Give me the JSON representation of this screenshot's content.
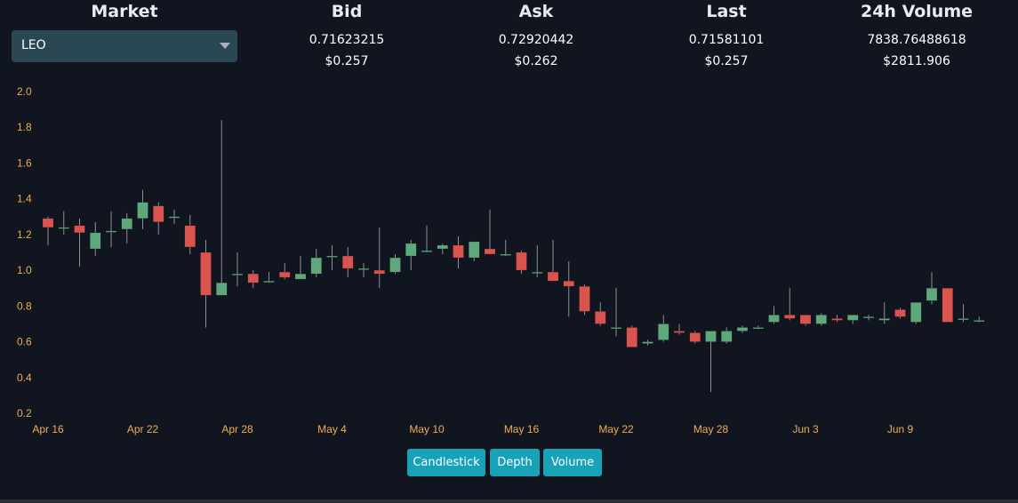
{
  "market": {
    "label": "Market",
    "selected": "LEO"
  },
  "stats": [
    {
      "label": "Bid",
      "value": "0.71623215",
      "usd": "$0.257"
    },
    {
      "label": "Ask",
      "value": "0.72920442",
      "usd": "$0.262"
    },
    {
      "label": "Last",
      "value": "0.71581101",
      "usd": "$0.257"
    },
    {
      "label": "24h Volume",
      "value": "7838.76488618",
      "usd": "$2811.906"
    }
  ],
  "buttons": {
    "candlestick": "Candlestick",
    "depth": "Depth",
    "volume": "Volume"
  },
  "colors": {
    "up": "#5fa87c",
    "down": "#d9534f",
    "wick": "#8a9299",
    "axis_text": "#f0ad4e",
    "button": "#17a2b8"
  },
  "chart_data": {
    "type": "candlestick",
    "ylim": [
      0.2,
      2.0
    ],
    "yticks": [
      "2.0",
      "1.8",
      "1.6",
      "1.4",
      "1.2",
      "1.0",
      "0.8",
      "0.6",
      "0.4",
      "0.2"
    ],
    "xticks": [
      "Apr 16",
      "Apr 22",
      "Apr 28",
      "May 4",
      "May 10",
      "May 16",
      "May 22",
      "May 28",
      "Jun 3",
      "Jun 9"
    ],
    "candles": [
      {
        "date": "Apr 16",
        "o": 1.29,
        "h": 1.3,
        "l": 1.14,
        "c": 1.24
      },
      {
        "date": "Apr 17",
        "o": 1.24,
        "h": 1.33,
        "l": 1.2,
        "c": 1.24
      },
      {
        "date": "Apr 18",
        "o": 1.25,
        "h": 1.29,
        "l": 1.02,
        "c": 1.21
      },
      {
        "date": "Apr 19",
        "o": 1.12,
        "h": 1.27,
        "l": 1.08,
        "c": 1.21
      },
      {
        "date": "Apr 20",
        "o": 1.22,
        "h": 1.33,
        "l": 1.13,
        "c": 1.22
      },
      {
        "date": "Apr 21",
        "o": 1.23,
        "h": 1.32,
        "l": 1.15,
        "c": 1.29
      },
      {
        "date": "Apr 22",
        "o": 1.29,
        "h": 1.45,
        "l": 1.23,
        "c": 1.38
      },
      {
        "date": "Apr 23",
        "o": 1.36,
        "h": 1.38,
        "l": 1.2,
        "c": 1.27
      },
      {
        "date": "Apr 24",
        "o": 1.3,
        "h": 1.34,
        "l": 1.26,
        "c": 1.3
      },
      {
        "date": "Apr 25",
        "o": 1.25,
        "h": 1.31,
        "l": 1.09,
        "c": 1.13
      },
      {
        "date": "Apr 26",
        "o": 1.1,
        "h": 1.17,
        "l": 0.68,
        "c": 0.86
      },
      {
        "date": "Apr 27",
        "o": 0.86,
        "h": 1.84,
        "l": 0.86,
        "c": 0.93
      },
      {
        "date": "Apr 28",
        "o": 0.98,
        "h": 1.1,
        "l": 0.91,
        "c": 0.98
      },
      {
        "date": "Apr 29",
        "o": 0.98,
        "h": 1.0,
        "l": 0.9,
        "c": 0.93
      },
      {
        "date": "Apr 30",
        "o": 0.94,
        "h": 0.99,
        "l": 0.93,
        "c": 0.94
      },
      {
        "date": "May 1",
        "o": 0.99,
        "h": 1.04,
        "l": 0.95,
        "c": 0.96
      },
      {
        "date": "May 2",
        "o": 0.95,
        "h": 1.08,
        "l": 0.95,
        "c": 0.98
      },
      {
        "date": "May 3",
        "o": 0.98,
        "h": 1.12,
        "l": 0.96,
        "c": 1.07
      },
      {
        "date": "May 4",
        "o": 1.08,
        "h": 1.14,
        "l": 1.0,
        "c": 1.08
      },
      {
        "date": "May 5",
        "o": 1.08,
        "h": 1.13,
        "l": 0.96,
        "c": 1.01
      },
      {
        "date": "May 6",
        "o": 1.01,
        "h": 1.04,
        "l": 0.96,
        "c": 1.01
      },
      {
        "date": "May 7",
        "o": 1.0,
        "h": 1.24,
        "l": 0.9,
        "c": 0.98
      },
      {
        "date": "May 8",
        "o": 0.99,
        "h": 1.09,
        "l": 0.98,
        "c": 1.07
      },
      {
        "date": "May 9",
        "o": 1.08,
        "h": 1.17,
        "l": 1.0,
        "c": 1.15
      },
      {
        "date": "May 10",
        "o": 1.11,
        "h": 1.25,
        "l": 1.1,
        "c": 1.11
      },
      {
        "date": "May 11",
        "o": 1.12,
        "h": 1.15,
        "l": 1.09,
        "c": 1.14
      },
      {
        "date": "May 12",
        "o": 1.14,
        "h": 1.19,
        "l": 1.01,
        "c": 1.07
      },
      {
        "date": "May 13",
        "o": 1.07,
        "h": 1.16,
        "l": 1.05,
        "c": 1.16
      },
      {
        "date": "May 14",
        "o": 1.12,
        "h": 1.34,
        "l": 1.09,
        "c": 1.09
      },
      {
        "date": "May 15",
        "o": 1.09,
        "h": 1.17,
        "l": 1.08,
        "c": 1.09
      },
      {
        "date": "May 16",
        "o": 1.1,
        "h": 1.11,
        "l": 0.98,
        "c": 1.0
      },
      {
        "date": "May 17",
        "o": 0.99,
        "h": 1.14,
        "l": 0.96,
        "c": 0.99
      },
      {
        "date": "May 18",
        "o": 0.99,
        "h": 1.17,
        "l": 0.94,
        "c": 0.94
      },
      {
        "date": "May 19",
        "o": 0.94,
        "h": 1.05,
        "l": 0.74,
        "c": 0.91
      },
      {
        "date": "May 20",
        "o": 0.91,
        "h": 0.92,
        "l": 0.75,
        "c": 0.77
      },
      {
        "date": "May 21",
        "o": 0.77,
        "h": 0.82,
        "l": 0.69,
        "c": 0.7
      },
      {
        "date": "May 22",
        "o": 0.68,
        "h": 0.9,
        "l": 0.63,
        "c": 0.68
      },
      {
        "date": "May 23",
        "o": 0.68,
        "h": 0.69,
        "l": 0.57,
        "c": 0.57
      },
      {
        "date": "May 24",
        "o": 0.59,
        "h": 0.61,
        "l": 0.58,
        "c": 0.6
      },
      {
        "date": "May 25",
        "o": 0.61,
        "h": 0.75,
        "l": 0.6,
        "c": 0.7
      },
      {
        "date": "May 26",
        "o": 0.66,
        "h": 0.7,
        "l": 0.64,
        "c": 0.65
      },
      {
        "date": "May 27",
        "o": 0.65,
        "h": 0.66,
        "l": 0.59,
        "c": 0.6
      },
      {
        "date": "May 28",
        "o": 0.6,
        "h": 0.66,
        "l": 0.32,
        "c": 0.66
      },
      {
        "date": "May 29",
        "o": 0.6,
        "h": 0.68,
        "l": 0.59,
        "c": 0.66
      },
      {
        "date": "May 30",
        "o": 0.66,
        "h": 0.69,
        "l": 0.65,
        "c": 0.68
      },
      {
        "date": "May 31",
        "o": 0.68,
        "h": 0.69,
        "l": 0.67,
        "c": 0.68
      },
      {
        "date": "Jun 1",
        "o": 0.71,
        "h": 0.8,
        "l": 0.7,
        "c": 0.75
      },
      {
        "date": "Jun 2",
        "o": 0.75,
        "h": 0.9,
        "l": 0.72,
        "c": 0.73
      },
      {
        "date": "Jun 3",
        "o": 0.75,
        "h": 0.75,
        "l": 0.69,
        "c": 0.7
      },
      {
        "date": "Jun 4",
        "o": 0.7,
        "h": 0.76,
        "l": 0.69,
        "c": 0.75
      },
      {
        "date": "Jun 5",
        "o": 0.73,
        "h": 0.75,
        "l": 0.71,
        "c": 0.72
      },
      {
        "date": "Jun 6",
        "o": 0.72,
        "h": 0.75,
        "l": 0.7,
        "c": 0.75
      },
      {
        "date": "Jun 7",
        "o": 0.74,
        "h": 0.75,
        "l": 0.72,
        "c": 0.74
      },
      {
        "date": "Jun 8",
        "o": 0.72,
        "h": 0.82,
        "l": 0.7,
        "c": 0.73
      },
      {
        "date": "Jun 9",
        "o": 0.78,
        "h": 0.79,
        "l": 0.73,
        "c": 0.74
      },
      {
        "date": "Jun 10",
        "o": 0.71,
        "h": 0.82,
        "l": 0.7,
        "c": 0.82
      },
      {
        "date": "Jun 11",
        "o": 0.83,
        "h": 0.99,
        "l": 0.81,
        "c": 0.9
      },
      {
        "date": "Jun 12",
        "o": 0.9,
        "h": 0.9,
        "l": 0.71,
        "c": 0.71
      },
      {
        "date": "Jun 13",
        "o": 0.73,
        "h": 0.81,
        "l": 0.71,
        "c": 0.73
      },
      {
        "date": "Jun 14",
        "o": 0.72,
        "h": 0.74,
        "l": 0.71,
        "c": 0.72
      }
    ]
  }
}
